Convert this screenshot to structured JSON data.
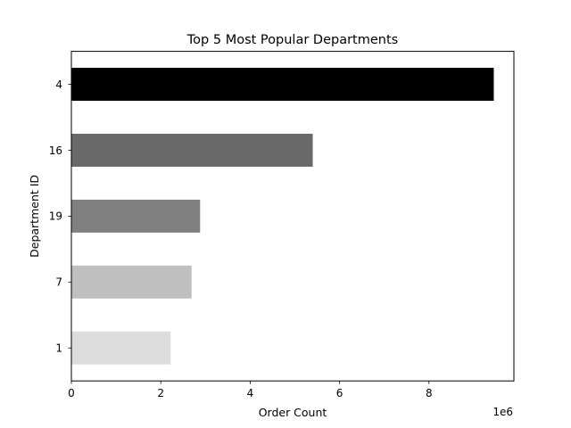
{
  "chart_data": {
    "type": "bar",
    "orientation": "horizontal",
    "title": "Top 5 Most Popular Departments",
    "xlabel": "Order Count",
    "ylabel": "Department ID",
    "x_offset_label": "1e6",
    "x_scale": 1000000,
    "xlim": [
      0,
      9900000
    ],
    "x_ticks": [
      0,
      2,
      4,
      6,
      8
    ],
    "categories": [
      "4",
      "16",
      "19",
      "7",
      "1"
    ],
    "values": [
      9450000,
      5400000,
      2880000,
      2690000,
      2220000
    ],
    "colors": [
      "#000000",
      "#696969",
      "#808080",
      "#c0c0c0",
      "#dcdcdc"
    ],
    "grid": false,
    "legend": "none"
  }
}
